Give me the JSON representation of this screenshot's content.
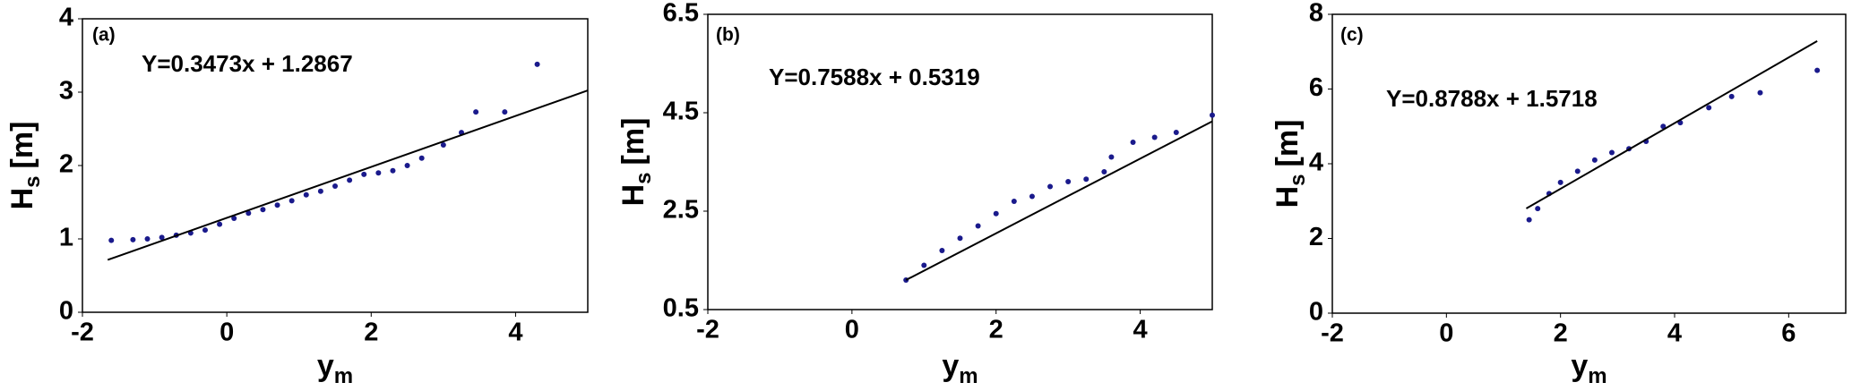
{
  "chart_data": [
    {
      "type": "scatter",
      "panel_label": "(a)",
      "xlabel": {
        "main": "y",
        "sub": "m"
      },
      "ylabel": {
        "main": "H",
        "sub": "s",
        "unit": "[m]"
      },
      "xlim": [
        -2,
        5
      ],
      "ylim": [
        0,
        4
      ],
      "xticks": [
        -2,
        0,
        2,
        4
      ],
      "yticks": [
        0,
        1,
        2,
        3,
        4
      ],
      "grid": false,
      "color": "#1a1a8c",
      "x": [
        -1.6,
        -1.3,
        -1.1,
        -0.9,
        -0.7,
        -0.5,
        -0.3,
        -0.1,
        0.1,
        0.3,
        0.5,
        0.7,
        0.9,
        1.1,
        1.3,
        1.5,
        1.7,
        1.9,
        2.1,
        2.3,
        2.5,
        2.7,
        3.0,
        3.25,
        3.45,
        3.85,
        4.3
      ],
      "values": [
        0.98,
        0.99,
        1.0,
        1.02,
        1.05,
        1.08,
        1.12,
        1.2,
        1.28,
        1.35,
        1.4,
        1.46,
        1.52,
        1.6,
        1.65,
        1.72,
        1.8,
        1.88,
        1.9,
        1.93,
        2.0,
        2.1,
        2.28,
        2.45,
        2.73,
        2.73,
        3.38
      ],
      "fit": {
        "label": "Y=0.3473x + 1.2867",
        "slope": 0.3473,
        "intercept": 1.2867,
        "x": [
          -1.65,
          5
        ]
      }
    },
    {
      "type": "scatter",
      "panel_label": "(b)",
      "xlabel": {
        "main": "y",
        "sub": "m"
      },
      "ylabel": {
        "main": "H",
        "sub": "s",
        "unit": "[m]"
      },
      "xlim": [
        -2,
        5
      ],
      "ylim": [
        0.5,
        6.5
      ],
      "xticks": [
        -2,
        0,
        2,
        4
      ],
      "yticks": [
        0.5,
        2.5,
        4.5,
        6.5
      ],
      "grid": false,
      "color": "#1a1a8c",
      "x": [
        0.75,
        1.0,
        1.25,
        1.5,
        1.75,
        2.0,
        2.25,
        2.5,
        2.75,
        3.0,
        3.25,
        3.5,
        3.6,
        3.9,
        4.2,
        4.5,
        5.0
      ],
      "values": [
        1.1,
        1.4,
        1.7,
        1.95,
        2.2,
        2.45,
        2.7,
        2.8,
        3.0,
        3.1,
        3.15,
        3.3,
        3.6,
        3.9,
        4.0,
        4.1,
        4.45
      ],
      "fit": {
        "label": "Y=0.7588x + 0.5319",
        "slope": 0.7588,
        "intercept": 0.5319,
        "x": [
          0.75,
          5
        ]
      }
    },
    {
      "type": "scatter",
      "panel_label": "(c)",
      "xlabel": {
        "main": "y",
        "sub": "m"
      },
      "ylabel": {
        "main": "H",
        "sub": "s",
        "unit": "[m]"
      },
      "xlim": [
        -2,
        7
      ],
      "ylim": [
        0,
        8
      ],
      "xticks": [
        -2,
        0,
        2,
        4,
        6
      ],
      "yticks": [
        0,
        2,
        4,
        6,
        8
      ],
      "grid": false,
      "color": "#1a1a8c",
      "x": [
        1.45,
        1.6,
        1.8,
        2.0,
        2.3,
        2.6,
        2.9,
        3.2,
        3.5,
        3.8,
        4.1,
        4.6,
        5.0,
        5.5,
        6.5
      ],
      "values": [
        2.5,
        2.8,
        3.2,
        3.5,
        3.8,
        4.1,
        4.3,
        4.4,
        4.6,
        5.0,
        5.1,
        5.5,
        5.8,
        5.9,
        6.5
      ],
      "fit": {
        "label": "Y=0.8788x + 1.5718",
        "slope": 0.8788,
        "intercept": 1.5718,
        "x": [
          1.4,
          6.5
        ]
      }
    }
  ]
}
